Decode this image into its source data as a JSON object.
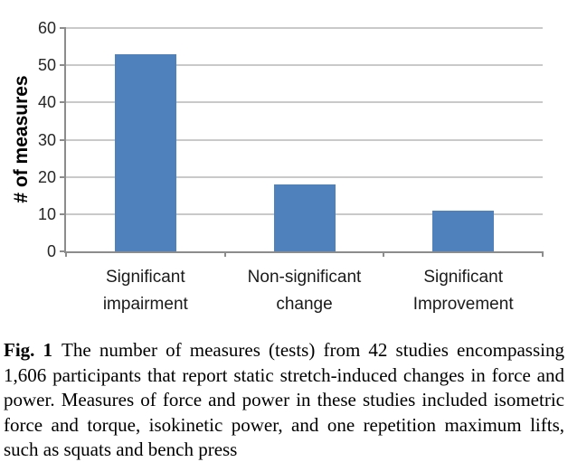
{
  "figure": {
    "caption": {
      "label": "Fig. 1",
      "text": "The number of measures (tests) from 42 studies encompassing 1,606 participants that report static stretch-induced changes in force and power. Measures of force and power in these studies included isometric force and torque, isokinetic power, and one repetition maximum lifts, such as squats and bench press"
    }
  },
  "chart_data": {
    "type": "bar",
    "categories": [
      "Significant\nimpairment",
      "Non-significant\nchange",
      "Significant\nImprovement"
    ],
    "values": [
      53,
      18,
      11
    ],
    "title": "",
    "xlabel": "",
    "ylabel": "# of measures",
    "ylim": [
      0,
      60
    ],
    "yticks": [
      0,
      10,
      20,
      30,
      40,
      50,
      60
    ],
    "grid": true,
    "legend": "none",
    "colors": {
      "bar": "#4F81BD",
      "gridline": "#C9C9C9",
      "axis": "#8C8C8C",
      "tick_label": "#262626",
      "category_label": "#1A1A1A"
    }
  }
}
